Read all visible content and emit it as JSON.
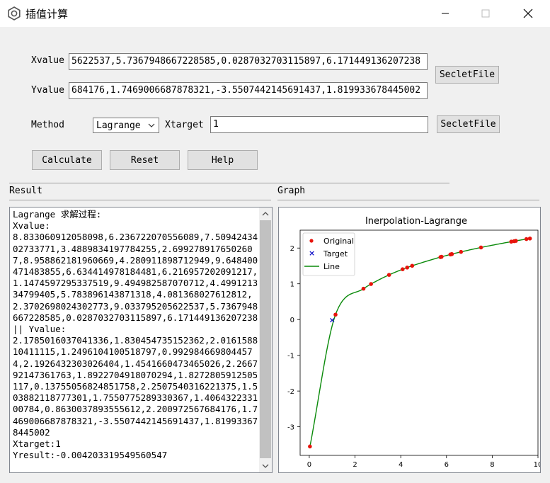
{
  "window": {
    "title": "插值计算",
    "minimize_glyph": "—",
    "maximize_glyph": "☐",
    "close_glyph": "✕"
  },
  "form": {
    "xvalue_label": "Xvalue",
    "xvalue_value": "5622537,5.7367948667228585,0.0287032703115897,6.171449136207238",
    "yvalue_label": "Yvalue",
    "yvalue_value": "684176,1.7469006687878321,-3.5507442145691437,1.819933678445002",
    "select_file_1": "SecletFile",
    "method_label": "Method",
    "method_selected": "Lagrange",
    "xtarget_label": "Xtarget",
    "xtarget_value": "1",
    "select_file_2": "SecletFile",
    "calculate": "Calculate",
    "reset": "Reset",
    "help": "Help"
  },
  "sections": {
    "result": "Result",
    "graph": "Graph"
  },
  "result_text": "Lagrange 求解过程:\nXvalue:\n8.833060912058098,6.236722070556089,7.5094243402733771,3.4889834197784255,2.6992789176502607,8.958862181960669,4.280911898712949,9.648400471483855,6.634414978184481,6.216957202091217,1.1474597295337519,9.494982587070712,4.499121334799405,5.783896143871318,4.081368027612812,2.3702698024302773,9.033795205622537,5.7367948667228585,0.0287032703115897,6.171449136207238 || Yvalue:\n2.1785016037041336,1.830454735152362,2.016158810411115,1.2496104100518797,0.9929846698044574,2.1926432303026404,1.4541660473465026,2.266792147361763,1.8922704918070294,1.8272805912505117,0.13755056824851758,2.2507540316221375,1.503882118777301,1.7550775289330367,1.406432233100784,0.8630037893555612,2.200972567684176,1.7469006687878321,-3.5507442145691437,1.819933678445002\nXtarget:1\nYresult:-0.004203319549560547",
  "chart_data": {
    "type": "scatter",
    "title": "Inerpolation-Lagrange",
    "xlim": [
      -0.4,
      10
    ],
    "ylim": [
      -3.8,
      2.5
    ],
    "xticks": [
      "0",
      "2",
      "4",
      "6",
      "8",
      "10"
    ],
    "yticks": [
      "2",
      "1",
      "0",
      "-1",
      "-2",
      "-3"
    ],
    "legend_position": "top-left",
    "series": [
      {
        "name": "Original",
        "color": "#e8140c",
        "x": [
          8.833060912058098,
          6.236722070556089,
          7.509424340273377,
          3.4889834197784255,
          2.6992789176502607,
          8.958862181960669,
          4.280911898712949,
          9.648400471483855,
          6.634414978184481,
          6.216957202091217,
          1.1474597295337519,
          9.494982587070712,
          4.499121334799405,
          5.783896143871318,
          4.081368027612812,
          2.3702698024302773,
          9.033795205622537,
          5.7367948667228585,
          0.0287032703115897,
          6.171449136207238
        ],
        "y": [
          2.1785016037041336,
          1.830454735152362,
          2.016158810411115,
          1.2496104100518797,
          0.9929846698044574,
          2.1926432303026404,
          1.4541660473465026,
          2.266792147361763,
          1.8922704918070294,
          1.8272805912505117,
          0.13755056824851758,
          2.2507540316221375,
          1.503882118777301,
          1.7550775289330367,
          1.406432233100784,
          0.8630037893555612,
          2.200972567684176,
          1.7469006687878321,
          -3.5507442145691437,
          1.819933678445002
        ]
      },
      {
        "name": "Target",
        "color": "#1010c8",
        "x": [
          1
        ],
        "y": [
          -0.004203319549560547
        ]
      },
      {
        "name": "Line",
        "color": "#0a8a0a"
      }
    ]
  }
}
